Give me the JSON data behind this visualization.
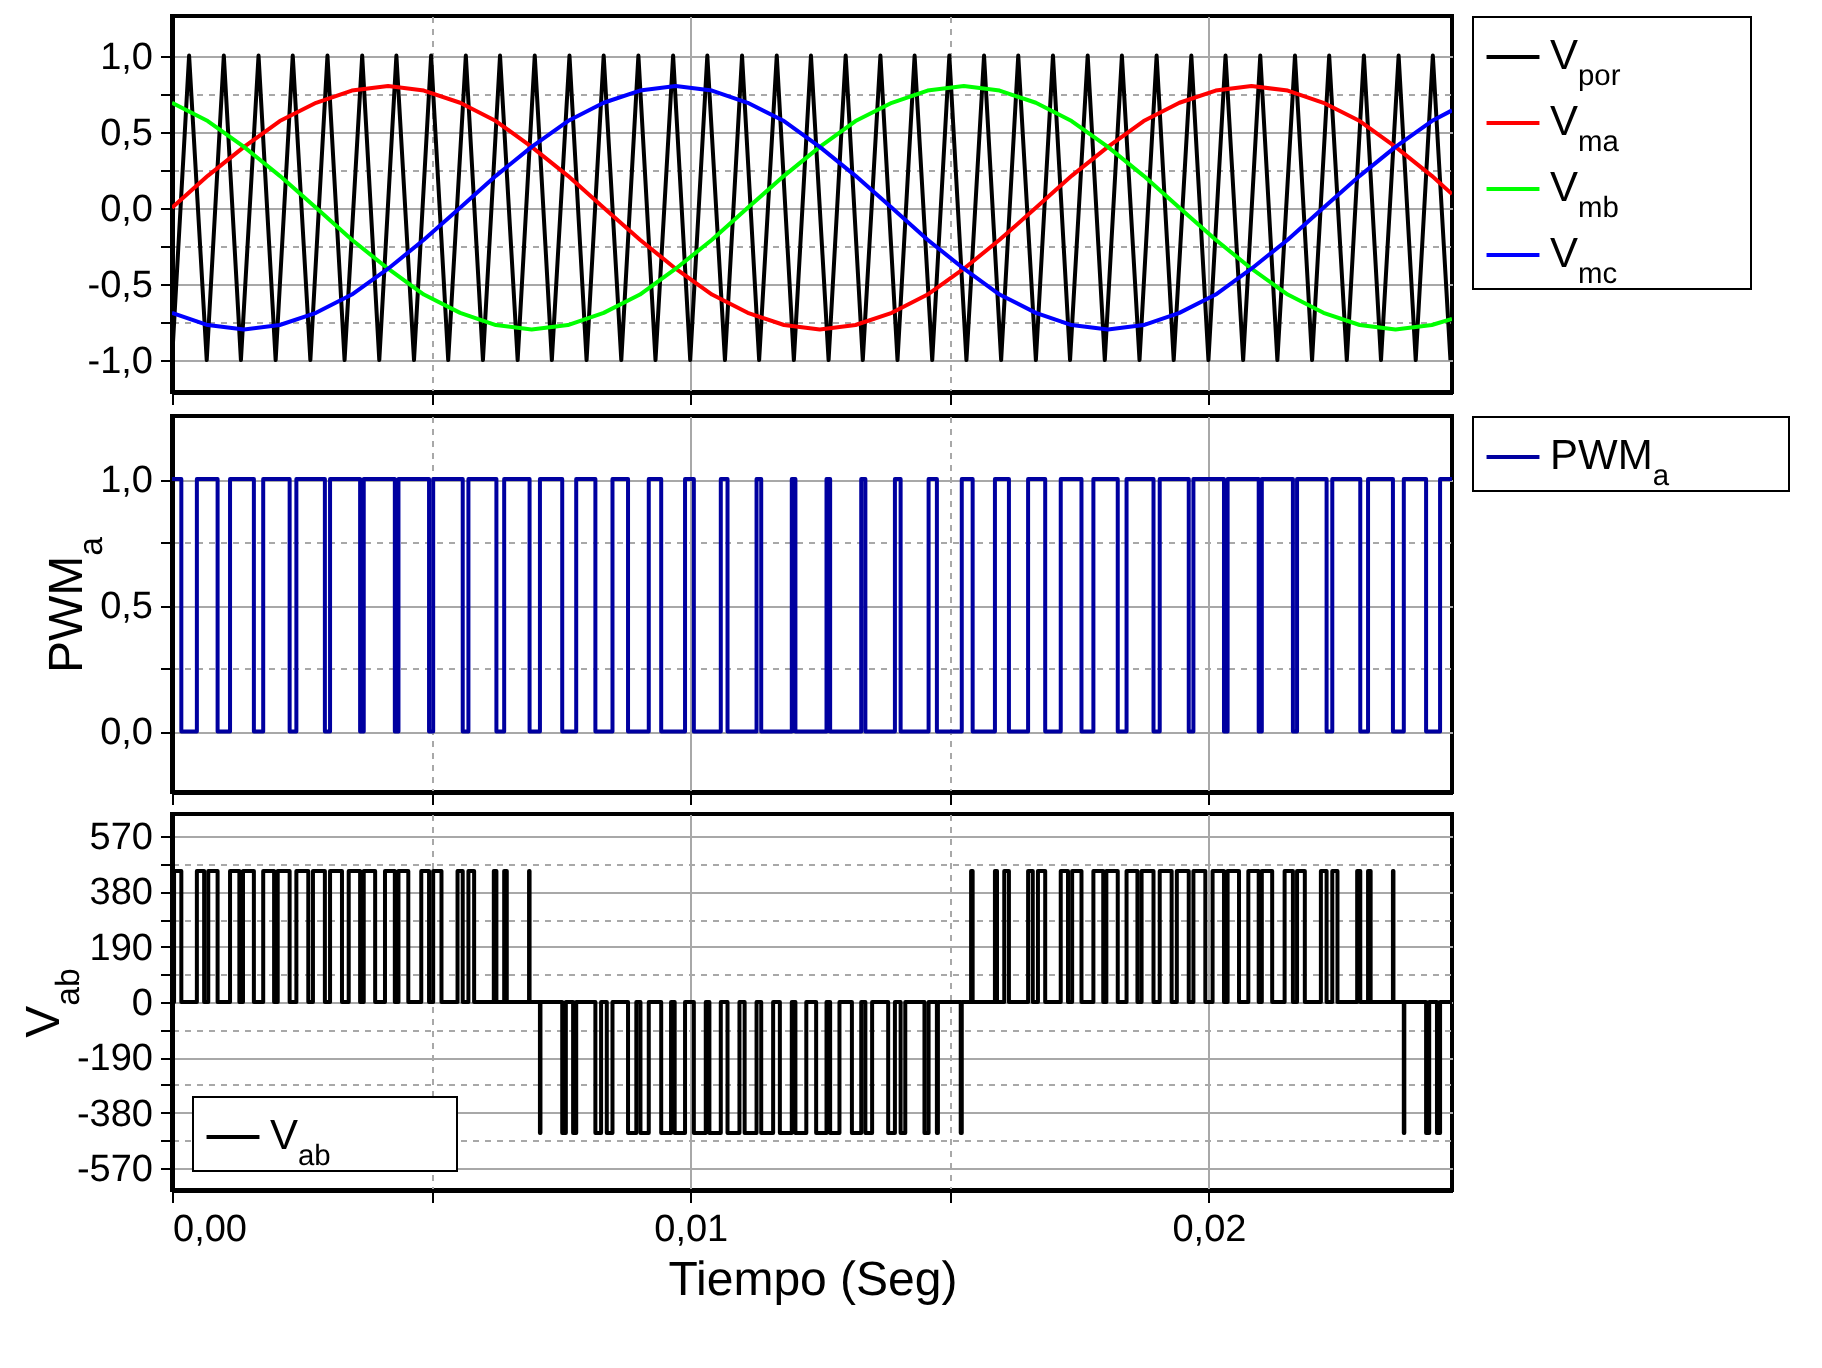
{
  "chart_data": [
    {
      "type": "line",
      "xlim": [
        0,
        0.0247
      ],
      "xticks": [
        {
          "value": 0,
          "label": null
        },
        {
          "value": 0.005,
          "label": null
        },
        {
          "value": 0.01,
          "label": null
        },
        {
          "value": 0.015,
          "label": null
        },
        {
          "value": 0.02,
          "label": null
        }
      ],
      "ylim": [
        -1.21,
        1.26
      ],
      "yticks": [
        {
          "value": -1,
          "label": "-1,0"
        },
        {
          "value": -0.75,
          "label": null
        },
        {
          "value": -0.5,
          "label": "-0,5"
        },
        {
          "value": -0.25,
          "label": null
        },
        {
          "value": 0,
          "label": "0,0"
        },
        {
          "value": 0.25,
          "label": null
        },
        {
          "value": 0.5,
          "label": "0,5"
        },
        {
          "value": 0.75,
          "label": null
        },
        {
          "value": 1,
          "label": "1,0"
        }
      ],
      "tick_labels": "y",
      "grid": true,
      "legend": "right",
      "x": [
        0,
        0.00069,
        0.00139,
        0.00208,
        0.00278,
        0.00347,
        0.00417,
        0.00486,
        0.00556,
        0.00625,
        0.00694,
        0.00764,
        0.00833,
        0.00903,
        0.00972,
        0.01042,
        0.01111,
        0.01181,
        0.0125,
        0.01319,
        0.01389,
        0.01458,
        0.01528,
        0.01597,
        0.01667,
        0.01736,
        0.01806,
        0.01875,
        0.01944,
        0.02014,
        0.02083,
        0.02153,
        0.02222,
        0.02292,
        0.02361,
        0.02431,
        0.0247
      ],
      "series": [
        {
          "name": "V$_{por}$",
          "color": "#000000",
          "x": [
            0,
            0.00033,
            0.00067,
            0.001,
            0.00133,
            0.00167,
            0.002,
            0.00233,
            0.00267,
            0.003,
            0.00333,
            0.00367,
            0.004,
            0.00433,
            0.00467,
            0.005,
            0.00533,
            0.00567,
            0.006,
            0.00633,
            0.00667,
            0.007,
            0.00733,
            0.00767,
            0.008,
            0.00833,
            0.00867,
            0.009,
            0.00933,
            0.00967,
            0.01,
            0.01033,
            0.01067,
            0.011,
            0.01133,
            0.01167,
            0.012,
            0.01233,
            0.01267,
            0.013,
            0.01333,
            0.01367,
            0.014,
            0.01433,
            0.01467,
            0.015,
            0.01533,
            0.01567,
            0.016,
            0.01633,
            0.01667,
            0.017,
            0.01733,
            0.01767,
            0.018,
            0.01833,
            0.01867,
            0.019,
            0.01933,
            0.01967,
            0.02,
            0.02033,
            0.02067,
            0.021,
            0.02133,
            0.02167,
            0.022,
            0.02233,
            0.02267,
            0.023,
            0.02333,
            0.02367,
            0.024,
            0.02433,
            0.02467
          ],
          "values": [
            -1,
            1,
            -1,
            1,
            -1,
            1,
            -1,
            1,
            -1,
            1,
            -1,
            1,
            -1,
            1,
            -1,
            1,
            -1,
            1,
            -1,
            1,
            -1,
            1,
            -1,
            1,
            -1,
            1,
            -1,
            1,
            -1,
            1,
            -1,
            1,
            -1,
            1,
            -1,
            1,
            -1,
            1,
            -1,
            1,
            -1,
            1,
            -1,
            1,
            -1,
            1,
            -1,
            1,
            -1,
            1,
            -1,
            1,
            -1,
            1,
            -1,
            1,
            -1,
            1,
            -1,
            1,
            -1,
            1,
            -1,
            1,
            -1,
            1,
            -1,
            1,
            -1,
            1,
            -1,
            1,
            -1,
            1,
            -1
          ]
        },
        {
          "name": "V$_{ma}$",
          "color": "#ff0000",
          "values": [
            0,
            0.21,
            0.4,
            0.57,
            0.69,
            0.77,
            0.8,
            0.77,
            0.69,
            0.57,
            0.4,
            0.21,
            0,
            -0.21,
            -0.4,
            -0.57,
            -0.69,
            -0.77,
            -0.8,
            -0.77,
            -0.69,
            -0.57,
            -0.4,
            -0.21,
            0,
            0.21,
            0.4,
            0.57,
            0.69,
            0.77,
            0.8,
            0.77,
            0.69,
            0.57,
            0.4,
            0.21,
            0.09
          ]
        },
        {
          "name": "V$_{mb}$",
          "color": "#00ff00",
          "values": [
            0.69,
            0.57,
            0.4,
            0.21,
            0,
            -0.21,
            -0.4,
            -0.57,
            -0.69,
            -0.77,
            -0.8,
            -0.77,
            -0.69,
            -0.57,
            -0.4,
            -0.21,
            0,
            0.21,
            0.4,
            0.57,
            0.69,
            0.77,
            0.8,
            0.77,
            0.69,
            0.57,
            0.4,
            0.21,
            0,
            -0.21,
            -0.4,
            -0.57,
            -0.69,
            -0.77,
            -0.8,
            -0.77,
            -0.73
          ]
        },
        {
          "name": "V$_{mc}$",
          "color": "#0000ff",
          "values": [
            -0.69,
            -0.77,
            -0.8,
            -0.77,
            -0.69,
            -0.57,
            -0.4,
            -0.21,
            0,
            0.21,
            0.4,
            0.57,
            0.69,
            0.77,
            0.8,
            0.77,
            0.69,
            0.57,
            0.4,
            0.21,
            0,
            -0.21,
            -0.4,
            -0.57,
            -0.69,
            -0.77,
            -0.8,
            -0.77,
            -0.69,
            -0.57,
            -0.4,
            -0.21,
            0,
            0.21,
            0.4,
            0.57,
            0.64
          ]
        }
      ]
    },
    {
      "type": "step",
      "ylabel": "PWM$_{a}$",
      "xlim": [
        0,
        0.0247
      ],
      "xticks": [
        {
          "value": 0,
          "label": null
        },
        {
          "value": 0.005,
          "label": null
        },
        {
          "value": 0.01,
          "label": null
        },
        {
          "value": 0.015,
          "label": null
        },
        {
          "value": 0.02,
          "label": null
        }
      ],
      "ylim": [
        -0.24,
        1.25
      ],
      "yticks": [
        {
          "value": 0,
          "label": "0,0"
        },
        {
          "value": 0.25,
          "label": null
        },
        {
          "value": 0.5,
          "label": "0,5"
        },
        {
          "value": 0.75,
          "label": null
        },
        {
          "value": 1,
          "label": "1,0"
        }
      ],
      "tick_labels": "y",
      "grid": true,
      "legend": "right",
      "series": [
        {
          "name": "PWM$_{a}$",
          "color": "#0000a0",
          "x": [
            0,
            0.00018,
            0.00048,
            0.00088,
            0.00112,
            0.00158,
            0.00176,
            0.00227,
            0.0024,
            0.00295,
            0.00305,
            0.00363,
            0.0037,
            0.0043,
            0.00437,
            0.00496,
            0.00504,
            0.00561,
            0.00572,
            0.00626,
            0.00641,
            0.0069,
            0.0071,
            0.00753,
            0.0078,
            0.00817,
            0.0085,
            0.0088,
            0.0092,
            0.00944,
            0.0099,
            0.01007,
            0.01059,
            0.01072,
            0.01128,
            0.01137,
            0.01196,
            0.01203,
            0.01263,
            0.0127,
            0.0133,
            0.01338,
            0.01395,
            0.01406,
            0.0146,
            0.01476,
            0.01524,
            0.01545,
            0.01588,
            0.01615,
            0.01652,
            0.01685,
            0.01715,
            0.01755,
            0.01778,
            0.01825,
            0.01842,
            0.01894,
            0.01906,
            0.01962,
            0.01971,
            0.0203,
            0.02037,
            0.02097,
            0.02103,
            0.02163,
            0.02171,
            0.02228,
            0.02239,
            0.02293,
            0.02308,
            0.02356,
            0.02377,
            0.0242,
            0.02447,
            0.0247
          ],
          "values": [
            1,
            0,
            1,
            0,
            1,
            0,
            1,
            0,
            1,
            0,
            1,
            0,
            1,
            0,
            1,
            0,
            1,
            0,
            1,
            0,
            1,
            0,
            1,
            0,
            1,
            0,
            1,
            0,
            1,
            0,
            1,
            0,
            1,
            0,
            1,
            0,
            1,
            0,
            1,
            0,
            1,
            0,
            1,
            0,
            1,
            0,
            1,
            0,
            1,
            0,
            1,
            0,
            1,
            0,
            1,
            0,
            1,
            0,
            1,
            0,
            1,
            0,
            1,
            0,
            1,
            0,
            1,
            0,
            1,
            0,
            1,
            0,
            1,
            0,
            1,
            1
          ]
        }
      ]
    },
    {
      "type": "step",
      "ylabel": "V$_{ab}$",
      "xlabel": "Tiempo (Seg)",
      "xlim": [
        0,
        0.0247
      ],
      "xticks": [
        {
          "value": 0,
          "label": "0,00"
        },
        {
          "value": 0.005,
          "label": null
        },
        {
          "value": 0.01,
          "label": "0,01"
        },
        {
          "value": 0.015,
          "label": null
        },
        {
          "value": 0.02,
          "label": "0,02"
        }
      ],
      "ylim": [
        -646,
        646
      ],
      "yticks": [
        -570,
        {
          "value": -475,
          "label": null
        },
        -380,
        {
          "value": -285,
          "label": null
        },
        -190,
        {
          "value": -95,
          "label": null
        },
        0,
        {
          "value": 95,
          "label": null
        },
        190,
        {
          "value": 285,
          "label": null
        },
        380,
        {
          "value": 475,
          "label": null
        },
        570
      ],
      "grid": true,
      "legend": "bottom left",
      "series": [
        {
          "name": "V$_{ab}$",
          "color": "#000000",
          "x": [
            0,
            4e-05,
            0.00018,
            0.00048,
            0.00062,
            0.0007,
            0.00088,
            0.00112,
            0.0013,
            0.00137,
            0.00158,
            0.00176,
            0.00197,
            0.00204,
            0.00227,
            0.0024,
            0.00263,
            0.00272,
            0.00295,
            0.00305,
            0.00328,
            0.00341,
            0.00363,
            0.0037,
            0.00392,
            0.00411,
            0.0043,
            0.00437,
            0.00456,
            0.00481,
            0.00496,
            0.00504,
            0.0052,
            0.00551,
            0.00561,
            0.00572,
            0.00583,
            0.00621,
            0.00626,
            0.00641,
            0.00646,
            0.00689,
            0.0069,
            0.0071,
            0.00711,
            0.00753,
            0.0076,
            0.00774,
            0.0078,
            0.00817,
            0.00828,
            0.00839,
            0.0085,
            0.0088,
            0.00896,
            0.00904,
            0.0092,
            0.00944,
            0.00963,
            0.0097,
            0.0099,
            0.01007,
            0.0103,
            0.01037,
            0.01059,
            0.01072,
            0.01095,
            0.01105,
            0.01128,
            0.01137,
            0.0116,
            0.01173,
            0.01196,
            0.01203,
            0.01224,
            0.01243,
            0.01263,
            0.0127,
            0.01288,
            0.01312,
            0.0133,
            0.01338,
            0.01351,
            0.01382,
            0.01395,
            0.01406,
            0.01415,
            0.01452,
            0.0146,
            0.01476,
            0.01478,
            0.01522,
            0.01524,
            0.01542,
            0.01545,
            0.01588,
            0.01592,
            0.01606,
            0.01615,
            0.01652,
            0.01661,
            0.01671,
            0.01685,
            0.01715,
            0.01729,
            0.01737,
            0.01755,
            0.01778,
            0.01797,
            0.01803,
            0.01825,
            0.01842,
            0.01863,
            0.01871,
            0.01894,
            0.01906,
            0.01929,
            0.01939,
            0.01962,
            0.01971,
            0.01994,
            0.02008,
            0.0203,
            0.02037,
            0.02059,
            0.02077,
            0.02097,
            0.02103,
            0.02123,
            0.02147,
            0.02163,
            0.02171,
            0.02186,
            0.02217,
            0.02228,
            0.02239,
            0.02249,
            0.02287,
            0.02293,
            0.02308,
            0.02313,
            0.02356,
            0.02357,
            0.02377,
            0.02378,
            0.0242,
            0.02426,
            0.02441,
            0.02447,
            0.0247
          ],
          "values": [
            0,
            450,
            0,
            450,
            0,
            450,
            0,
            450,
            0,
            450,
            0,
            450,
            0,
            450,
            0,
            450,
            0,
            450,
            0,
            450,
            0,
            450,
            0,
            450,
            0,
            450,
            0,
            450,
            0,
            450,
            0,
            450,
            0,
            450,
            0,
            450,
            0,
            450,
            0,
            450,
            0,
            450,
            0,
            -450,
            0,
            -450,
            0,
            -450,
            0,
            -450,
            0,
            -450,
            0,
            -450,
            0,
            -450,
            0,
            -450,
            0,
            -450,
            0,
            -450,
            0,
            -450,
            0,
            -450,
            0,
            -450,
            0,
            -450,
            0,
            -450,
            0,
            -450,
            0,
            -450,
            0,
            -450,
            0,
            -450,
            0,
            -450,
            0,
            -450,
            0,
            -450,
            0,
            -450,
            0,
            -450,
            0,
            -450,
            0,
            450,
            0,
            450,
            0,
            450,
            0,
            450,
            0,
            450,
            0,
            450,
            0,
            450,
            0,
            450,
            0,
            450,
            0,
            450,
            0,
            450,
            0,
            450,
            0,
            450,
            0,
            450,
            0,
            450,
            0,
            450,
            0,
            450,
            0,
            450,
            0,
            450,
            0,
            450,
            0,
            450,
            0,
            450,
            0,
            450,
            0,
            450,
            0,
            450,
            0,
            -450,
            0,
            -450,
            0,
            -450,
            0,
            0
          ]
        }
      ]
    }
  ]
}
